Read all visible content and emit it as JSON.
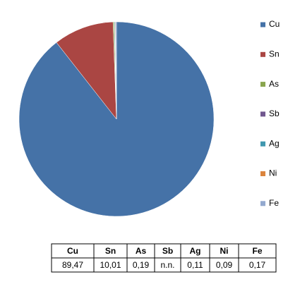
{
  "chart_data": {
    "type": "pie",
    "categories": [
      "Cu",
      "Sn",
      "As",
      "Sb",
      "Ag",
      "Ni",
      "Fe"
    ],
    "values": [
      89.47,
      10.01,
      0.19,
      null,
      0.11,
      0.09,
      0.17
    ],
    "value_labels": [
      "89,47",
      "10,01",
      "0,19",
      "n.n.",
      "0,11",
      "0,09",
      "0,17"
    ],
    "colors": [
      "#4572a7",
      "#aa4643",
      "#89a54e",
      "#71588f",
      "#4198af",
      "#db843d",
      "#93a9cf"
    ],
    "legend": "right"
  }
}
